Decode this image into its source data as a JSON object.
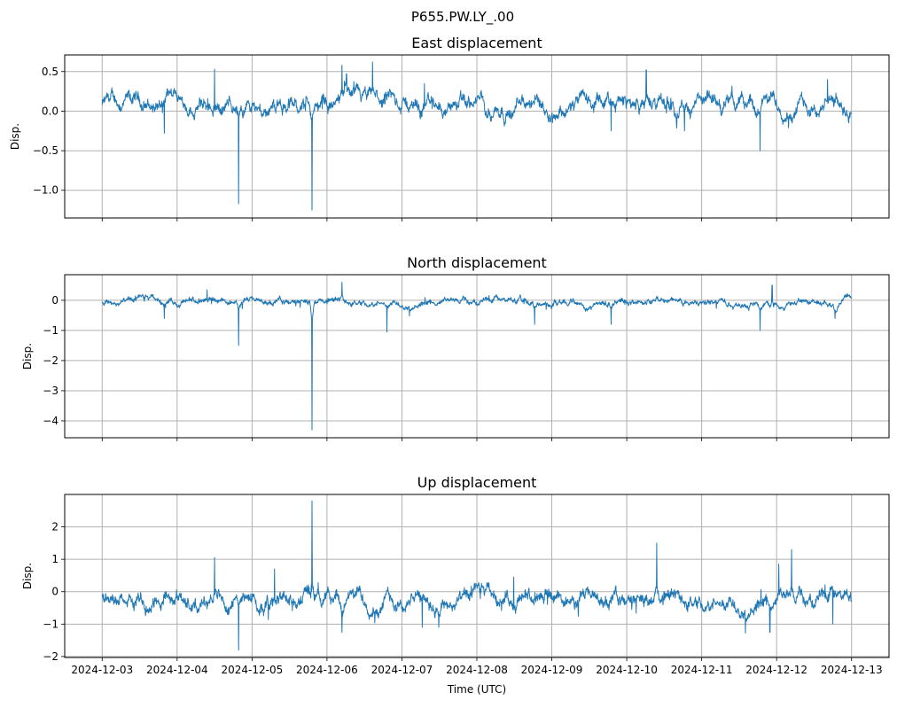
{
  "chart_data": {
    "suptitle": "P655.PW.LY_.00",
    "xlabel": "Time (UTC)",
    "x_tick_labels": [
      "2024-12-03",
      "2024-12-04",
      "2024-12-05",
      "2024-12-06",
      "2024-12-07",
      "2024-12-08",
      "2024-12-09",
      "2024-12-10",
      "2024-12-11",
      "2024-12-12",
      "2024-12-13"
    ],
    "x_range_days": [
      -0.5,
      10.5
    ],
    "line_color": "#1f77b4",
    "grid": true,
    "panels": [
      {
        "type": "line",
        "title": "East displacement",
        "ylabel": "Disp.",
        "ylim": [
          -1.35,
          0.71
        ],
        "yticks": [
          0.5,
          0.0,
          -0.5,
          -1.0
        ],
        "ytick_labels": [
          "0.5",
          "0.0",
          "−0.5",
          "−1.0"
        ],
        "baseline": 0.08,
        "noise": 0.09,
        "spikes": [
          [
            0.83,
            -0.28
          ],
          [
            1.5,
            0.53
          ],
          [
            1.82,
            -1.17
          ],
          [
            2.8,
            -1.25
          ],
          [
            3.2,
            0.58
          ],
          [
            3.26,
            0.47
          ],
          [
            3.61,
            0.62
          ],
          [
            4.3,
            0.35
          ],
          [
            6.79,
            -0.25
          ],
          [
            7.26,
            0.52
          ],
          [
            7.77,
            -0.25
          ],
          [
            8.78,
            -0.5
          ],
          [
            9.68,
            0.4
          ]
        ]
      },
      {
        "type": "line",
        "title": "North displacement",
        "ylabel": "Disp.",
        "ylim": [
          -4.56,
          0.85
        ],
        "yticks": [
          0,
          -1,
          -2,
          -3,
          -4
        ],
        "ytick_labels": [
          "0",
          "−1",
          "−2",
          "−3",
          "−4"
        ],
        "baseline": -0.05,
        "noise": 0.1,
        "spikes": [
          [
            0.83,
            -0.6
          ],
          [
            1.4,
            0.35
          ],
          [
            1.82,
            -1.5
          ],
          [
            2.8,
            -4.3
          ],
          [
            3.2,
            0.6
          ],
          [
            3.8,
            -1.05
          ],
          [
            5.77,
            -0.8
          ],
          [
            6.79,
            -0.8
          ],
          [
            8.78,
            -1.0
          ],
          [
            8.94,
            0.5
          ],
          [
            9.78,
            -0.6
          ]
        ]
      },
      {
        "type": "line",
        "title": "Up displacement",
        "ylabel": "Disp.",
        "ylim": [
          -2.03,
          3.0
        ],
        "yticks": [
          2,
          1,
          0,
          -1,
          -2
        ],
        "ytick_labels": [
          "2",
          "1",
          "0",
          "−1",
          "−2"
        ],
        "baseline": -0.25,
        "noise": 0.22,
        "spikes": [
          [
            1.5,
            1.05
          ],
          [
            1.82,
            -1.8
          ],
          [
            2.3,
            0.7
          ],
          [
            2.8,
            2.8
          ],
          [
            3.2,
            -1.25
          ],
          [
            4.27,
            -1.1
          ],
          [
            4.49,
            -1.1
          ],
          [
            5.49,
            0.45
          ],
          [
            7.4,
            1.5
          ],
          [
            8.91,
            -1.25
          ],
          [
            9.03,
            0.85
          ],
          [
            9.2,
            1.3
          ],
          [
            9.75,
            -1.0
          ]
        ]
      }
    ]
  }
}
